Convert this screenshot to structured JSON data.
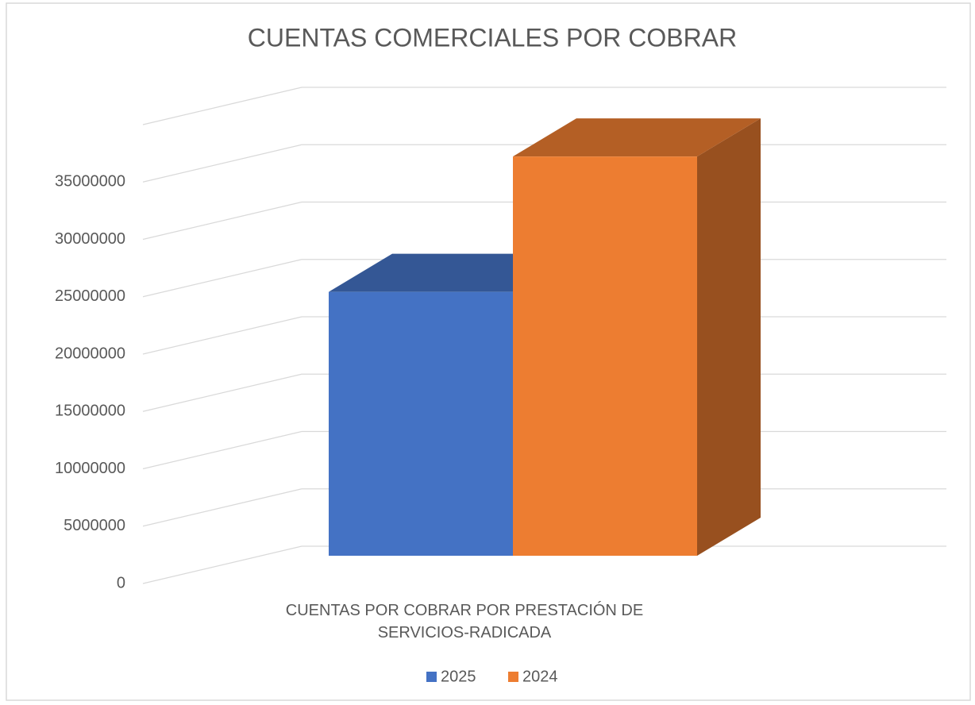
{
  "chart_data": {
    "type": "bar3d",
    "title": "CUENTAS COMERCIALES POR COBRAR",
    "categories": [
      "CUENTAS POR COBRAR POR PRESTACIÓN DE SERVICIOS-RADICADA"
    ],
    "series": [
      {
        "name": "2025",
        "color": "#4472c4",
        "values": [
          23000000
        ]
      },
      {
        "name": "2024",
        "color": "#ed7d31",
        "values": [
          34800000
        ]
      }
    ],
    "ylim": [
      0,
      40000000
    ],
    "yticks": [
      0,
      5000000,
      10000000,
      15000000,
      20000000,
      25000000,
      30000000,
      35000000
    ],
    "grid": true,
    "legend": "bottom"
  }
}
